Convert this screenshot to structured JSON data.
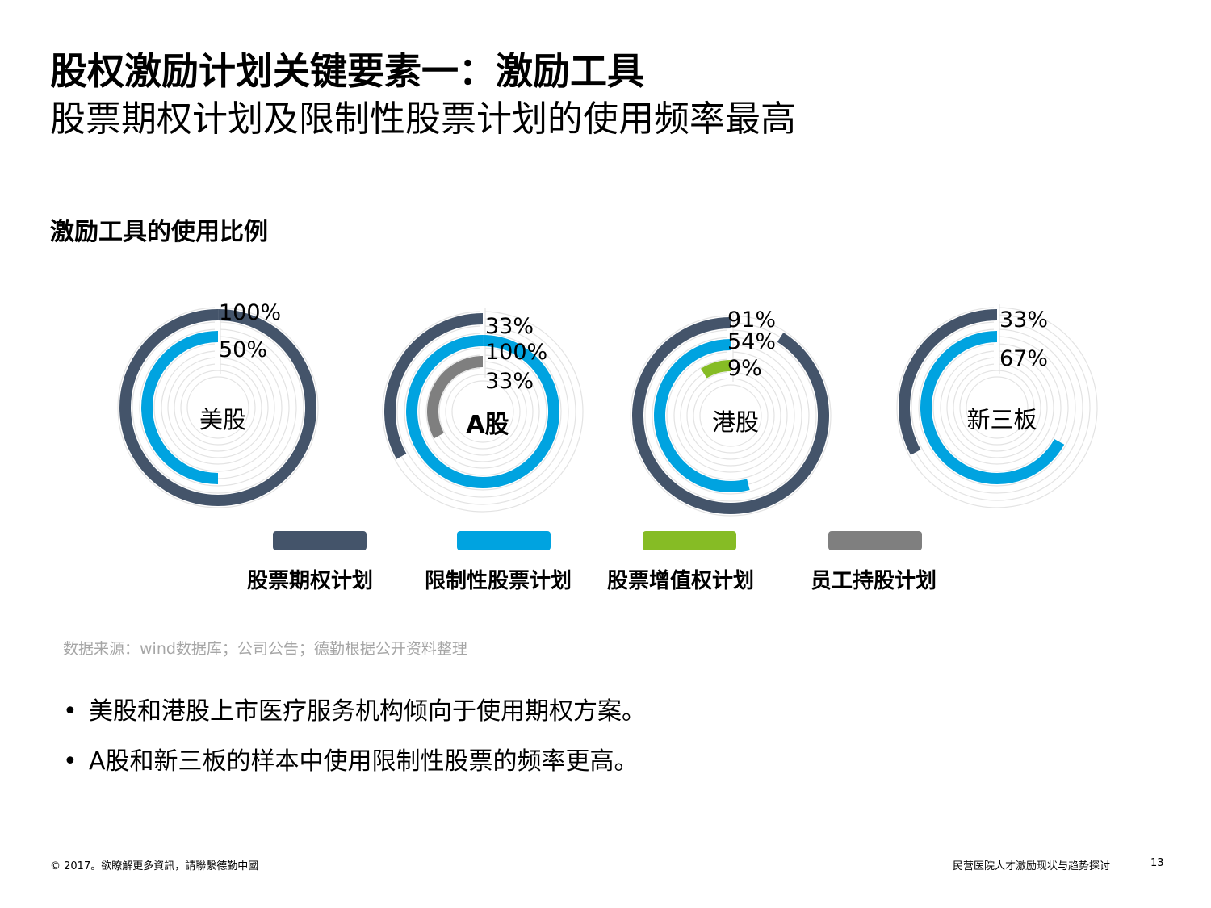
{
  "header": {
    "title_line1": "股权激励计划关键要素一：激励工具",
    "title_line2": "股票期权计划及限制性股票计划的使用频率最高"
  },
  "section_title": "激励工具的使用比例",
  "colors": {
    "stock_option": "#44546a",
    "restricted_stock": "#00a3e0",
    "sar": "#86bc25",
    "esop": "#7f7f7f",
    "track": "#e3e3e3"
  },
  "chart_data": {
    "type": "radial-bar",
    "series_names": [
      "股票期权计划",
      "限制性股票计划",
      "股票增值权计划",
      "员工持股计划"
    ],
    "charts": [
      {
        "market": "美股",
        "rings": [
          {
            "series": "股票期权计划",
            "value": 100,
            "label": "100%"
          },
          {
            "series": "限制性股票计划",
            "value": 50,
            "label": "50%"
          }
        ]
      },
      {
        "market": "A股",
        "rings": [
          {
            "series": "股票期权计划",
            "value": 33,
            "label": "33%"
          },
          {
            "series": "限制性股票计划",
            "value": 100,
            "label": "100%"
          },
          {
            "series": "员工持股计划",
            "value": 33,
            "label": "33%"
          }
        ]
      },
      {
        "market": "港股",
        "rings": [
          {
            "series": "股票期权计划",
            "value": 91,
            "label": "91%"
          },
          {
            "series": "限制性股票计划",
            "value": 54,
            "label": "54%"
          },
          {
            "series": "股票增值权计划",
            "value": 9,
            "label": "9%"
          }
        ]
      },
      {
        "market": "新三板",
        "rings": [
          {
            "series": "股票期权计划",
            "value": 33,
            "label": "33%"
          },
          {
            "series": "限制性股票计划",
            "value": 67,
            "label": "67%"
          }
        ]
      }
    ]
  },
  "legend": [
    {
      "label": "股票期权计划",
      "color": "#44546a"
    },
    {
      "label": "限制性股票计划",
      "color": "#00a3e0"
    },
    {
      "label": "股票增值权计划",
      "color": "#86bc25"
    },
    {
      "label": "员工持股计划",
      "color": "#7f7f7f"
    }
  ],
  "source_note": "数据来源：wind数据库；公司公告；德勤根据公开资料整理",
  "bullets": [
    "美股和港股上市医疗服务机构倾向于使用期权方案。",
    "A股和新三板的样本中使用限制性股票的频率更高。"
  ],
  "footer": {
    "left": "© 2017。欲瞭解更多資訊，請聯繫德勤中國",
    "right": "民营医院人才激励现状与趋势探讨",
    "page": "13"
  }
}
